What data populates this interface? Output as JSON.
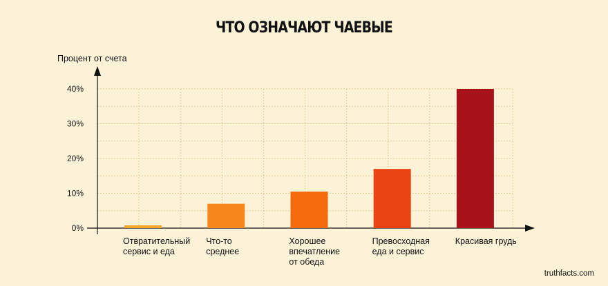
{
  "chart_data": {
    "type": "bar",
    "title": "ЧТО ОЗНАЧАЮТ ЧАЕВЫЕ",
    "ylabel": "Процент от счета",
    "xlabel": "",
    "categories": [
      [
        "Отвратительный",
        "сервис и еда"
      ],
      [
        "Что-то",
        "среднее"
      ],
      [
        "Хорошее",
        "впечатление",
        "от обеда"
      ],
      [
        "Превосходная",
        "еда и сервис"
      ],
      [
        "Красивая грудь"
      ]
    ],
    "values": [
      0.8,
      7,
      10.5,
      17,
      40
    ],
    "colors": [
      "#f5a32a",
      "#f7861c",
      "#f46b0e",
      "#e84310",
      "#a8121a"
    ],
    "yticks": [
      "0%",
      "10%",
      "20%",
      "30%",
      "40%"
    ],
    "ytick_values": [
      0,
      10,
      20,
      30,
      40
    ],
    "ylim": [
      0,
      40
    ],
    "grid": true
  },
  "credit": "truthfacts.com"
}
